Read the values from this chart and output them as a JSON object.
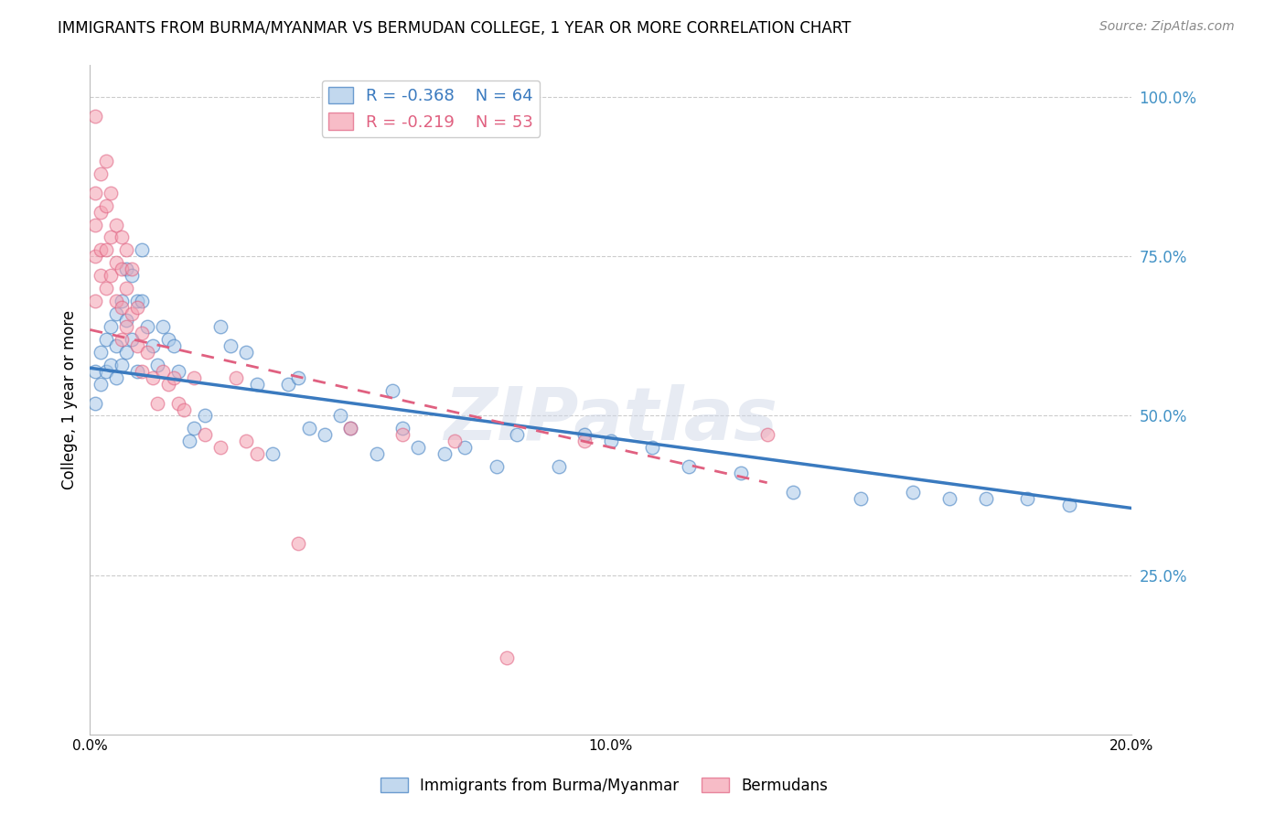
{
  "title": "IMMIGRANTS FROM BURMA/MYANMAR VS BERMUDAN COLLEGE, 1 YEAR OR MORE CORRELATION CHART",
  "source": "Source: ZipAtlas.com",
  "ylabel": "College, 1 year or more",
  "right_ytick_labels": [
    "25.0%",
    "50.0%",
    "75.0%",
    "100.0%"
  ],
  "right_ytick_values": [
    0.25,
    0.5,
    0.75,
    1.0
  ],
  "xlim": [
    0.0,
    0.2
  ],
  "ylim": [
    0.0,
    1.05
  ],
  "xtick_labels": [
    "0.0%",
    "",
    "",
    "",
    "",
    "10.0%",
    "",
    "",
    "",
    "",
    "20.0%"
  ],
  "xtick_values": [
    0.0,
    0.02,
    0.04,
    0.06,
    0.08,
    0.1,
    0.12,
    0.14,
    0.16,
    0.18,
    0.2
  ],
  "legend_r1": "R = -0.368",
  "legend_n1": "N = 64",
  "legend_r2": "R = -0.219",
  "legend_n2": "N = 53",
  "color_blue": "#a8c8e8",
  "color_pink": "#f4a0b0",
  "color_blue_line": "#3a7abf",
  "color_pink_line": "#e06080",
  "color_right_axis": "#4292c6",
  "watermark": "ZIPatlas",
  "blue_line_x0": 0.0,
  "blue_line_y0": 0.575,
  "blue_line_x1": 0.2,
  "blue_line_y1": 0.355,
  "pink_line_x0": 0.0,
  "pink_line_y0": 0.635,
  "pink_line_x1": 0.13,
  "pink_line_y1": 0.395,
  "blue_scatter_x": [
    0.001,
    0.001,
    0.002,
    0.002,
    0.003,
    0.003,
    0.004,
    0.004,
    0.005,
    0.005,
    0.005,
    0.006,
    0.006,
    0.007,
    0.007,
    0.007,
    0.008,
    0.008,
    0.009,
    0.009,
    0.01,
    0.01,
    0.011,
    0.012,
    0.013,
    0.014,
    0.015,
    0.016,
    0.017,
    0.019,
    0.02,
    0.022,
    0.025,
    0.027,
    0.03,
    0.032,
    0.035,
    0.038,
    0.04,
    0.042,
    0.045,
    0.048,
    0.05,
    0.055,
    0.058,
    0.06,
    0.063,
    0.068,
    0.072,
    0.078,
    0.082,
    0.09,
    0.095,
    0.1,
    0.108,
    0.115,
    0.125,
    0.135,
    0.148,
    0.158,
    0.165,
    0.172,
    0.18,
    0.188
  ],
  "blue_scatter_y": [
    0.57,
    0.52,
    0.6,
    0.55,
    0.62,
    0.57,
    0.64,
    0.58,
    0.66,
    0.61,
    0.56,
    0.68,
    0.58,
    0.73,
    0.65,
    0.6,
    0.72,
    0.62,
    0.68,
    0.57,
    0.76,
    0.68,
    0.64,
    0.61,
    0.58,
    0.64,
    0.62,
    0.61,
    0.57,
    0.46,
    0.48,
    0.5,
    0.64,
    0.61,
    0.6,
    0.55,
    0.44,
    0.55,
    0.56,
    0.48,
    0.47,
    0.5,
    0.48,
    0.44,
    0.54,
    0.48,
    0.45,
    0.44,
    0.45,
    0.42,
    0.47,
    0.42,
    0.47,
    0.46,
    0.45,
    0.42,
    0.41,
    0.38,
    0.37,
    0.38,
    0.37,
    0.37,
    0.37,
    0.36
  ],
  "pink_scatter_x": [
    0.001,
    0.001,
    0.001,
    0.001,
    0.001,
    0.002,
    0.002,
    0.002,
    0.002,
    0.003,
    0.003,
    0.003,
    0.003,
    0.004,
    0.004,
    0.004,
    0.005,
    0.005,
    0.005,
    0.006,
    0.006,
    0.006,
    0.006,
    0.007,
    0.007,
    0.007,
    0.008,
    0.008,
    0.009,
    0.009,
    0.01,
    0.01,
    0.011,
    0.012,
    0.013,
    0.014,
    0.015,
    0.016,
    0.017,
    0.018,
    0.02,
    0.022,
    0.025,
    0.028,
    0.03,
    0.032,
    0.04,
    0.05,
    0.06,
    0.07,
    0.08,
    0.095,
    0.13
  ],
  "pink_scatter_y": [
    0.97,
    0.85,
    0.8,
    0.75,
    0.68,
    0.88,
    0.82,
    0.76,
    0.72,
    0.9,
    0.83,
    0.76,
    0.7,
    0.85,
    0.78,
    0.72,
    0.8,
    0.74,
    0.68,
    0.78,
    0.73,
    0.67,
    0.62,
    0.76,
    0.7,
    0.64,
    0.73,
    0.66,
    0.67,
    0.61,
    0.63,
    0.57,
    0.6,
    0.56,
    0.52,
    0.57,
    0.55,
    0.56,
    0.52,
    0.51,
    0.56,
    0.47,
    0.45,
    0.56,
    0.46,
    0.44,
    0.3,
    0.48,
    0.47,
    0.46,
    0.12,
    0.46,
    0.47
  ]
}
